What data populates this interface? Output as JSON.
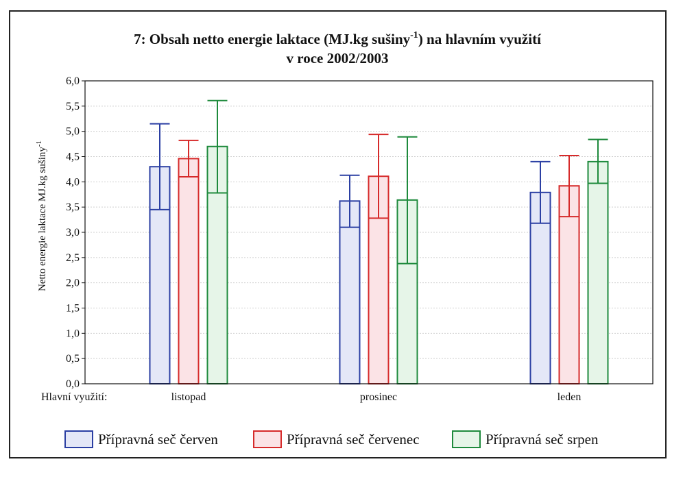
{
  "chart_data": {
    "type": "bar",
    "title_line1": "7: Obsah netto energie laktace (MJ.kg sušiny",
    "title_sup": "-1",
    "title_line1_end": ") na hlavním využití",
    "title_line2": "v roce 2002/2003",
    "ylabel": "Netto energie laktace MJ.kg sušiny",
    "ylabel_sup": "-1",
    "xlabel": "Hlavní využití:",
    "ylim": [
      0,
      6
    ],
    "yticks": [
      0,
      0.5,
      1,
      1.5,
      2,
      2.5,
      3,
      3.5,
      4,
      4.5,
      5,
      5.5,
      6
    ],
    "ytick_labels": [
      "0,0",
      "0,5",
      "1,0",
      "1,5",
      "2,0",
      "2,5",
      "3,0",
      "3,5",
      "4,0",
      "4,5",
      "5,0",
      "5,5",
      "6,0"
    ],
    "categories": [
      "listopad",
      "prosinec",
      "leden"
    ],
    "grid": true,
    "legend_position": "bottom",
    "series": [
      {
        "name": "Přípravná seč červen",
        "color": "#2b3fa3",
        "fill": "#e4e7f7",
        "values": [
          4.3,
          3.62,
          3.79
        ],
        "lower": [
          3.45,
          3.1,
          3.18
        ],
        "upper": [
          5.15,
          4.13,
          4.4
        ]
      },
      {
        "name": "Přípravná seč červenec",
        "color": "#d62a2a",
        "fill": "#fbe3e6",
        "values": [
          4.46,
          4.11,
          3.92
        ],
        "lower": [
          4.1,
          3.28,
          3.31
        ],
        "upper": [
          4.82,
          4.94,
          4.52
        ]
      },
      {
        "name": "Přípravná seč srpen",
        "color": "#1e8a3c",
        "fill": "#e6f5e8",
        "values": [
          4.7,
          3.64,
          4.4
        ],
        "lower": [
          3.78,
          2.38,
          3.97
        ],
        "upper": [
          5.61,
          4.89,
          4.84
        ]
      }
    ]
  }
}
